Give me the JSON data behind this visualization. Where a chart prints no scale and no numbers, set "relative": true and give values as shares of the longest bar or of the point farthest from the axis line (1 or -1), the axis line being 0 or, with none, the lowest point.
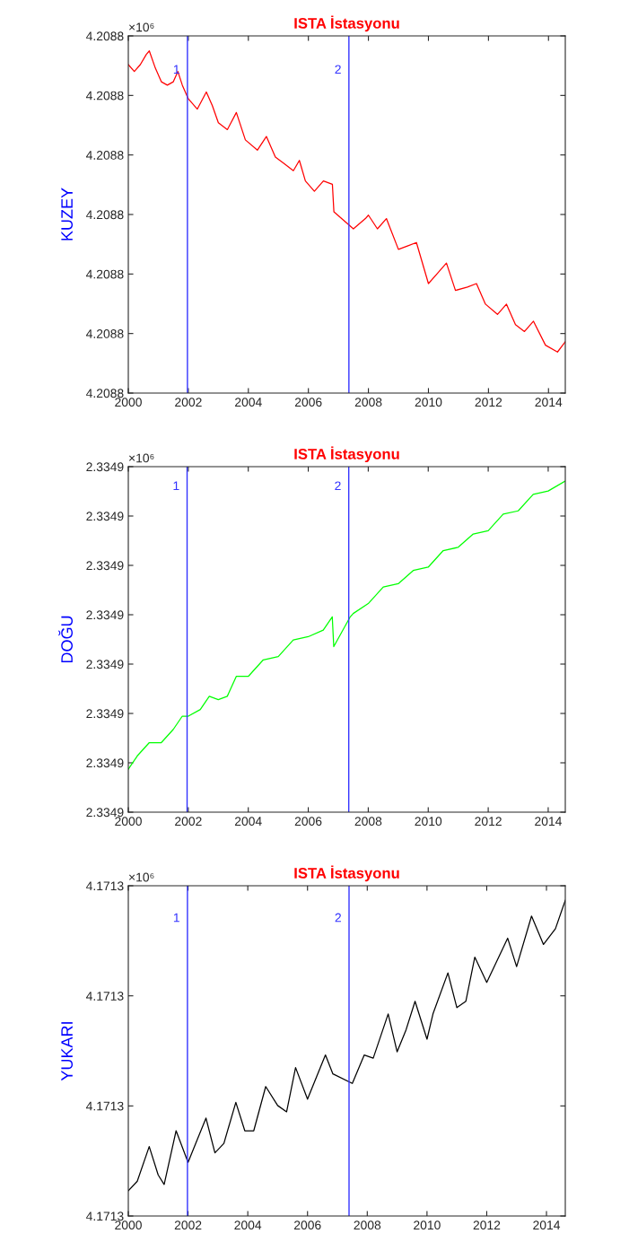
{
  "chart_data": [
    {
      "type": "line",
      "title": "ISTA İstasyonu",
      "ylabel": "KUZEY",
      "relative": true,
      "annotations": [
        "×10⁶",
        "4.2088",
        "4.2088",
        "4.2088",
        "4.2088",
        "4.2088",
        "4.2088",
        "4.2088",
        {
          "text": "1",
          "x": 2001.97,
          "y": 0.96
        },
        {
          "text": "2",
          "x": 2007.35,
          "y": 0.96
        }
      ],
      "x": [
        2000.0,
        2000.2,
        2000.4,
        2000.6,
        2000.7,
        2000.9,
        2001.1,
        2001.3,
        2001.5,
        2001.65,
        2001.8,
        2002.0,
        2002.3,
        2002.6,
        2002.8,
        2003.0,
        2003.3,
        2003.6,
        2003.9,
        2004.3,
        2004.6,
        2004.9,
        2005.2,
        2005.5,
        2005.7,
        2005.9,
        2006.2,
        2006.5,
        2006.8,
        2006.85,
        2007.5,
        2007.9,
        2008.0,
        2008.3,
        2008.6,
        2009.0,
        2009.3,
        2009.6,
        2010.0,
        2010.3,
        2010.6,
        2010.9,
        2011.3,
        2011.6,
        2011.9,
        2012.3,
        2012.6,
        2012.9,
        2013.2,
        2013.5,
        2013.9,
        2014.3,
        2014.56
      ],
      "series": [
        {
          "color": "#ff0000",
          "values": [
            0.96,
            0.94,
            0.96,
            0.99,
            1.0,
            0.95,
            0.91,
            0.9,
            0.91,
            0.94,
            0.9,
            0.86,
            0.83,
            0.88,
            0.84,
            0.79,
            0.77,
            0.82,
            0.74,
            0.71,
            0.75,
            0.69,
            0.67,
            0.65,
            0.68,
            0.62,
            0.59,
            0.62,
            0.61,
            0.53,
            0.48,
            0.51,
            0.52,
            0.48,
            0.51,
            0.42,
            0.43,
            0.44,
            0.32,
            0.35,
            0.38,
            0.3,
            0.31,
            0.32,
            0.26,
            0.23,
            0.26,
            0.2,
            0.18,
            0.21,
            0.14,
            0.12,
            0.15
          ]
        }
      ],
      "xlim": [
        2000,
        2014.56
      ],
      "xticks": [
        2000,
        2002,
        2004,
        2006,
        2008,
        2010,
        2012,
        2014
      ],
      "ref_lines": [
        {
          "axis": "x",
          "value": 2001.97,
          "color": "#3333ff"
        },
        {
          "axis": "x",
          "value": 2007.35,
          "color": "#3333ff"
        }
      ]
    },
    {
      "type": "line",
      "title": "ISTA İstasyonu",
      "ylabel": "DOĞU",
      "relative": true,
      "annotations": [
        "×10⁶",
        "2.3349",
        "2.3349",
        "2.3349",
        "2.3349",
        "2.3349",
        "2.3349",
        "2.3349",
        "2.3349",
        {
          "text": "1",
          "x": 2001.96,
          "y": 1.0
        },
        {
          "text": "2",
          "x": 2007.35,
          "y": 1.0
        }
      ],
      "x": [
        2000.0,
        2000.3,
        2000.7,
        2001.1,
        2001.5,
        2001.8,
        2002.0,
        2002.4,
        2002.7,
        2003.0,
        2003.3,
        2003.6,
        2004.0,
        2004.5,
        2005.0,
        2005.5,
        2006.0,
        2006.5,
        2006.8,
        2006.85,
        2007.4,
        2007.5,
        2008.0,
        2008.5,
        2009.0,
        2009.5,
        2010.0,
        2010.5,
        2011.0,
        2011.5,
        2012.0,
        2012.5,
        2013.0,
        2013.5,
        2014.0,
        2014.57
      ],
      "series": [
        {
          "color": "#00ff00",
          "values": [
            0.13,
            0.17,
            0.21,
            0.21,
            0.25,
            0.29,
            0.29,
            0.31,
            0.35,
            0.34,
            0.35,
            0.41,
            0.41,
            0.46,
            0.47,
            0.52,
            0.53,
            0.55,
            0.59,
            0.5,
            0.59,
            0.6,
            0.63,
            0.68,
            0.69,
            0.73,
            0.74,
            0.79,
            0.8,
            0.84,
            0.85,
            0.9,
            0.91,
            0.96,
            0.97,
            1.0
          ]
        }
      ],
      "xlim": [
        2000,
        2014.57
      ],
      "xticks": [
        2000,
        2002,
        2004,
        2006,
        2008,
        2010,
        2012,
        2014
      ],
      "ref_lines": [
        {
          "axis": "x",
          "value": 2001.96,
          "color": "#3333ff"
        },
        {
          "axis": "x",
          "value": 2007.35,
          "color": "#3333ff"
        }
      ]
    },
    {
      "type": "line",
      "title": "ISTA İstasyonu",
      "ylabel": "YUKARI",
      "relative": true,
      "annotations": [
        "×10⁶",
        "4.1713",
        "4.1713",
        "4.1713",
        "4.1713",
        {
          "text": "1",
          "x": 2001.98,
          "y": 0.96
        },
        {
          "text": "2",
          "x": 2007.39,
          "y": 0.96
        }
      ],
      "x": [
        2000.0,
        2000.3,
        2000.7,
        2001.0,
        2001.2,
        2001.6,
        2002.0,
        2002.6,
        2002.9,
        2003.2,
        2003.6,
        2003.9,
        2004.2,
        2004.6,
        2005.0,
        2005.3,
        2005.6,
        2006.0,
        2006.6,
        2006.85,
        2007.5,
        2007.9,
        2008.2,
        2008.7,
        2009.0,
        2009.3,
        2009.6,
        2010.0,
        2010.2,
        2010.7,
        2011.0,
        2011.3,
        2011.6,
        2012.0,
        2012.7,
        2013.0,
        2013.5,
        2013.9,
        2014.3,
        2014.63
      ],
      "series": [
        {
          "color": "#000000",
          "values": [
            0.08,
            0.11,
            0.22,
            0.13,
            0.1,
            0.27,
            0.17,
            0.31,
            0.2,
            0.23,
            0.36,
            0.27,
            0.27,
            0.41,
            0.35,
            0.33,
            0.47,
            0.37,
            0.51,
            0.45,
            0.42,
            0.51,
            0.5,
            0.64,
            0.52,
            0.59,
            0.68,
            0.56,
            0.64,
            0.77,
            0.66,
            0.68,
            0.82,
            0.74,
            0.88,
            0.79,
            0.95,
            0.86,
            0.91,
            1.0
          ]
        }
      ],
      "xlim": [
        2000,
        2014.63
      ],
      "xticks": [
        2000,
        2002,
        2004,
        2006,
        2008,
        2010,
        2012,
        2014
      ],
      "ref_lines": [
        {
          "axis": "x",
          "value": 2001.98,
          "color": "#3333ff"
        },
        {
          "axis": "x",
          "value": 2007.39,
          "color": "#3333ff"
        }
      ]
    }
  ]
}
